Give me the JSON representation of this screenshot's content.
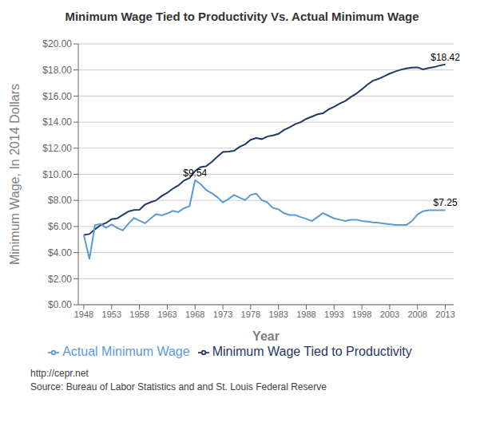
{
  "chart_data": {
    "type": "line",
    "title": "Minimum Wage Tied to Productivity Vs. Actual Minimum Wage",
    "x_label": "Year",
    "y_label": "Minimum Wage, In 2014 Dollars",
    "footnotes": [
      "http://cepr.net",
      "Source: Bureau of Labor Statistics and and St. Louis Federal Reserve"
    ],
    "x": [
      1948,
      1949,
      1950,
      1951,
      1952,
      1953,
      1954,
      1955,
      1956,
      1957,
      1958,
      1959,
      1960,
      1961,
      1962,
      1963,
      1964,
      1965,
      1966,
      1967,
      1968,
      1969,
      1970,
      1971,
      1972,
      1973,
      1974,
      1975,
      1976,
      1977,
      1978,
      1979,
      1980,
      1981,
      1982,
      1983,
      1984,
      1985,
      1986,
      1987,
      1988,
      1989,
      1990,
      1991,
      1992,
      1993,
      1994,
      1995,
      1996,
      1997,
      1998,
      1999,
      2000,
      2001,
      2002,
      2003,
      2004,
      2005,
      2006,
      2007,
      2008,
      2009,
      2010,
      2011,
      2012,
      2013
    ],
    "series": [
      {
        "name": "Minimum Wage Tied to Productivity",
        "color": "#1F3864",
        "values": [
          5.35,
          5.42,
          5.79,
          6.1,
          6.27,
          6.56,
          6.62,
          6.89,
          7.15,
          7.26,
          7.28,
          7.68,
          7.86,
          8.0,
          8.34,
          8.58,
          8.9,
          9.15,
          9.52,
          9.71,
          10.25,
          10.55,
          10.62,
          10.95,
          11.35,
          11.72,
          11.75,
          11.8,
          12.1,
          12.3,
          12.65,
          12.78,
          12.7,
          12.9,
          12.98,
          13.1,
          13.4,
          13.6,
          13.85,
          14.0,
          14.25,
          14.42,
          14.6,
          14.68,
          14.98,
          15.18,
          15.42,
          15.62,
          15.92,
          16.18,
          16.52,
          16.88,
          17.18,
          17.32,
          17.52,
          17.72,
          17.88,
          18.02,
          18.12,
          18.18,
          18.2,
          18.05,
          18.15,
          18.22,
          18.34,
          18.42
        ]
      },
      {
        "name": "Actual Minimum Wage",
        "color": "#5B9BD5",
        "values": [
          5.35,
          3.5,
          6.1,
          6.2,
          5.9,
          6.15,
          5.9,
          5.7,
          6.2,
          6.65,
          6.45,
          6.25,
          6.6,
          6.95,
          6.85,
          7.0,
          7.2,
          7.1,
          7.4,
          7.55,
          9.54,
          9.25,
          8.8,
          8.55,
          8.25,
          7.85,
          8.1,
          8.42,
          8.22,
          8.02,
          8.42,
          8.52,
          8.02,
          7.85,
          7.42,
          7.32,
          7.02,
          6.88,
          6.88,
          6.72,
          6.58,
          6.42,
          6.72,
          7.02,
          6.82,
          6.62,
          6.52,
          6.42,
          6.52,
          6.52,
          6.42,
          6.38,
          6.32,
          6.28,
          6.22,
          6.18,
          6.12,
          6.12,
          6.12,
          6.42,
          6.92,
          7.17,
          7.25,
          7.25,
          7.25,
          7.25
        ]
      }
    ],
    "annotations": [
      {
        "text": "$18.42",
        "x": 2013,
        "y": 18.42
      },
      {
        "text": "$9.54",
        "x": 1968,
        "y": 9.54
      },
      {
        "text": "$7.25",
        "x": 2013,
        "y": 7.25
      }
    ],
    "xlim": [
      1947,
      2014.5
    ],
    "xticks": [
      1948,
      1953,
      1958,
      1963,
      1968,
      1973,
      1978,
      1983,
      1988,
      1993,
      1998,
      2003,
      2008,
      2013
    ],
    "ylim": [
      0,
      20
    ],
    "yticks": [
      {
        "value": 0,
        "label": "$0.00"
      },
      {
        "value": 2,
        "label": "$2.00"
      },
      {
        "value": 4,
        "label": "$4.00"
      },
      {
        "value": 6,
        "label": "$6.00"
      },
      {
        "value": 8,
        "label": "$8.00"
      },
      {
        "value": 10,
        "label": "$10.00"
      },
      {
        "value": 12,
        "label": "$12.00"
      },
      {
        "value": 14,
        "label": "$14.00"
      },
      {
        "value": 16,
        "label": "$16.00"
      },
      {
        "value": 18,
        "label": "$18.00"
      },
      {
        "value": 20,
        "label": "$20.00"
      }
    ],
    "grid": true,
    "legend": "bottom"
  }
}
